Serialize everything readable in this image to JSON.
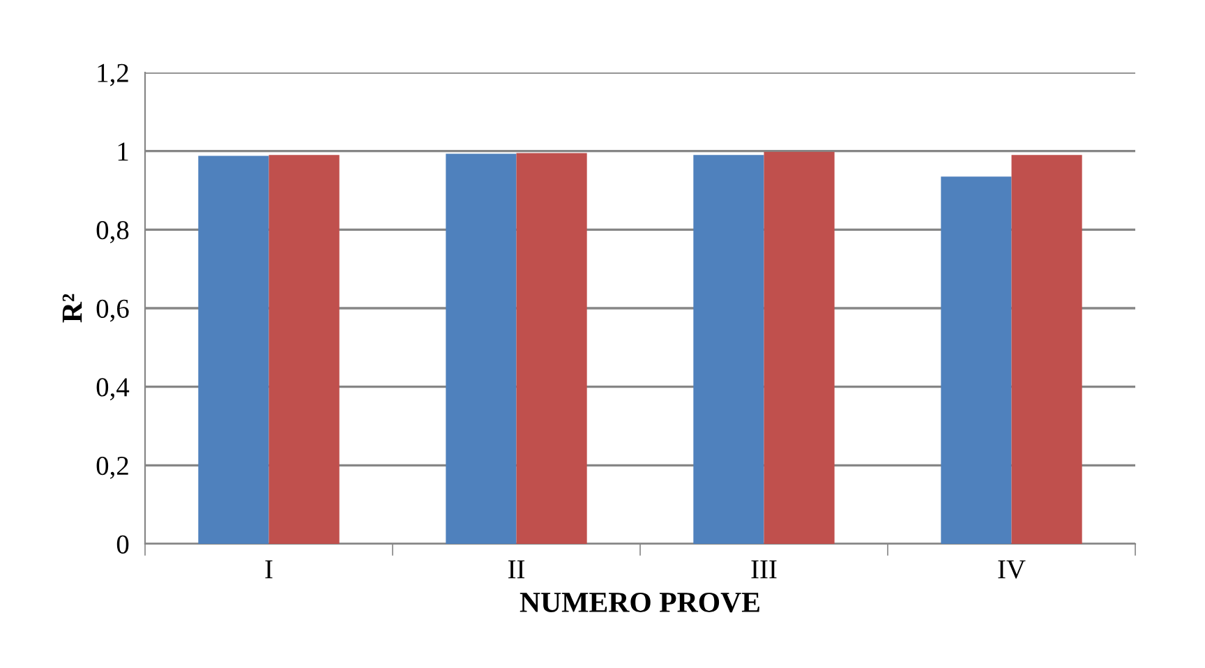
{
  "chart_data": {
    "type": "bar",
    "xlabel": "NUMERO PROVE",
    "ylabel": "R²",
    "categories": [
      "I",
      "II",
      "III",
      "IV"
    ],
    "series": [
      {
        "color": "#4f81bd",
        "values": [
          0.988,
          0.993,
          0.99,
          0.935
        ]
      },
      {
        "color": "#c0504d",
        "values": [
          0.99,
          0.995,
          0.998,
          0.99
        ]
      }
    ],
    "ylim": [
      0,
      1.2
    ],
    "yticks": [
      {
        "value": 0,
        "label": "0"
      },
      {
        "value": 0.2,
        "label": "0,2"
      },
      {
        "value": 0.4,
        "label": "0,4"
      },
      {
        "value": 0.6,
        "label": "0,6"
      },
      {
        "value": 0.8,
        "label": "0,8"
      },
      {
        "value": 1,
        "label": "1"
      },
      {
        "value": 1.2,
        "label": "1,2"
      }
    ],
    "grid": "y",
    "legend": false
  }
}
